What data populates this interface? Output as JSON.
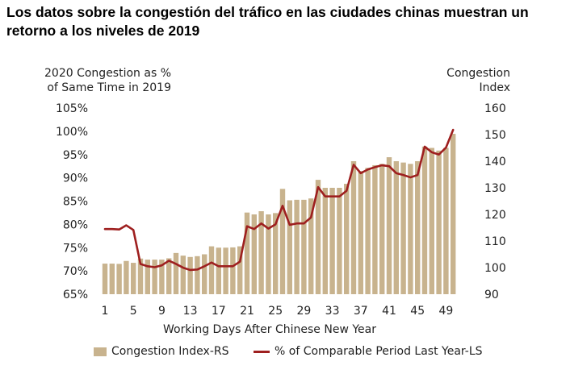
{
  "title": "Los datos sobre la congestión del tráfico en las ciudades chinas muestran un retorno a los niveles de 2019",
  "left_axis_title": [
    "2020 Congestion as %",
    "of Same Time in 2019"
  ],
  "right_axis_title": [
    "Congestion",
    "Index"
  ],
  "colors": {
    "bar": "#c8b38e",
    "line": "#9e1f1f"
  },
  "legend": {
    "bar_label": "Congestion Index-RS",
    "line_label": "% of Comparable Period Last Year-LS"
  },
  "chart_data": {
    "type": "bar",
    "xlabel": "Working Days After Chinese New Year",
    "x": [
      1,
      2,
      3,
      4,
      5,
      6,
      7,
      8,
      9,
      10,
      11,
      12,
      13,
      14,
      15,
      16,
      17,
      18,
      19,
      20,
      21,
      22,
      23,
      24,
      25,
      26,
      27,
      28,
      29,
      30,
      31,
      32,
      33,
      34,
      35,
      36,
      37,
      38,
      39,
      40,
      41,
      42,
      43,
      44,
      45,
      46,
      47,
      48,
      49,
      50
    ],
    "xticks": [
      "1",
      "5",
      "9",
      "13",
      "17",
      "21",
      "25",
      "29",
      "33",
      "37",
      "41",
      "45",
      "49"
    ],
    "left_axis": {
      "ticks": [
        "65%",
        "70%",
        "75%",
        "80%",
        "85%",
        "90%",
        "95%",
        "100%",
        "105%"
      ],
      "ylim": [
        65,
        105
      ]
    },
    "right_axis": {
      "ticks": [
        "90",
        "100",
        "110",
        "120",
        "130",
        "140",
        "150",
        "160"
      ],
      "ylim": [
        90,
        160
      ]
    },
    "series": [
      {
        "name": "Congestion Index-RS",
        "axis": "right",
        "kind": "bar",
        "values": [
          101.5,
          101.5,
          101.4,
          102.5,
          101.8,
          103.4,
          103.0,
          103.0,
          103.0,
          103.5,
          105.5,
          104.5,
          104.0,
          104.3,
          105.0,
          108.0,
          107.5,
          107.5,
          107.6,
          108.0,
          120.7,
          120.0,
          121.2,
          120.0,
          120.5,
          129.6,
          125.3,
          125.5,
          125.5,
          126.0,
          133.0,
          130.0,
          130.0,
          130.0,
          131.5,
          140.0,
          136.3,
          137.5,
          138.5,
          139.0,
          141.5,
          140.0,
          139.5,
          139.0,
          140.0,
          145.5,
          145.0,
          144.0,
          145.0,
          150.3
        ]
      },
      {
        "name": "% of Comparable Period Last Year-LS",
        "axis": "left",
        "kind": "line",
        "values": [
          79.0,
          79.0,
          78.9,
          79.8,
          78.8,
          71.5,
          71.0,
          70.8,
          71.2,
          72.2,
          71.5,
          70.7,
          70.2,
          70.3,
          71.0,
          71.8,
          71.0,
          71.0,
          71.0,
          72.0,
          79.6,
          79.0,
          80.2,
          79.1,
          80.0,
          84.0,
          79.9,
          80.2,
          80.2,
          81.5,
          88.0,
          86.0,
          86.0,
          86.0,
          87.2,
          92.8,
          91.0,
          91.8,
          92.3,
          92.7,
          92.5,
          91.0,
          90.6,
          90.1,
          90.6,
          96.7,
          95.5,
          95.0,
          96.5,
          100.3
        ]
      }
    ]
  }
}
